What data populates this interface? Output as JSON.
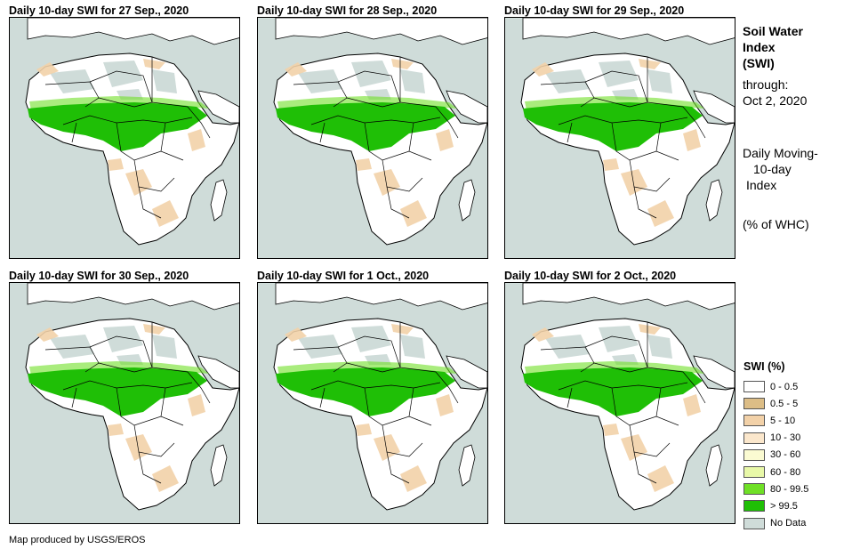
{
  "panels": [
    {
      "title": "Daily 10-day SWI for 27 Sep., 2020"
    },
    {
      "title": "Daily 10-day SWI for 28 Sep., 2020"
    },
    {
      "title": "Daily 10-day SWI for 29 Sep., 2020"
    },
    {
      "title": "Daily 10-day SWI for 30 Sep., 2020"
    },
    {
      "title": "Daily 10-day SWI for 1 Oct., 2020"
    },
    {
      "title": "Daily 10-day SWI for 2 Oct., 2020"
    }
  ],
  "side": {
    "title_lines": [
      "Soil Water",
      "Index",
      "(SWI)"
    ],
    "through_label": "through:",
    "through_date": "Oct 2, 2020",
    "desc_lines": [
      "Daily Moving-",
      "10-day",
      "Index"
    ],
    "units": "(% of WHC)"
  },
  "legend": {
    "title": "SWI (%)",
    "items": [
      {
        "label": "0 - 0.5",
        "color": "#ffffff"
      },
      {
        "label": "0.5 - 5",
        "color": "#dcbd86"
      },
      {
        "label": "5 - 10",
        "color": "#f2d1a8"
      },
      {
        "label": "10 - 30",
        "color": "#fbe7cc"
      },
      {
        "label": "30 - 60",
        "color": "#fbfbd2"
      },
      {
        "label": "60 - 80",
        "color": "#e8f8a8"
      },
      {
        "label": "80 - 99.5",
        "color": "#6fe026"
      },
      {
        "label": "> 99.5",
        "color": "#1fbf06"
      },
      {
        "label": "No Data",
        "color": "#cfdcd9"
      }
    ]
  },
  "footer": "Map produced by USGS/EROS",
  "colors": {
    "ocean": "#cfdcd9",
    "land": "#ffffff",
    "dry": "#f2d1a8",
    "nodata": "#cfdcd9",
    "green": "#1fbf06",
    "lightgreen": "#6fe026"
  }
}
